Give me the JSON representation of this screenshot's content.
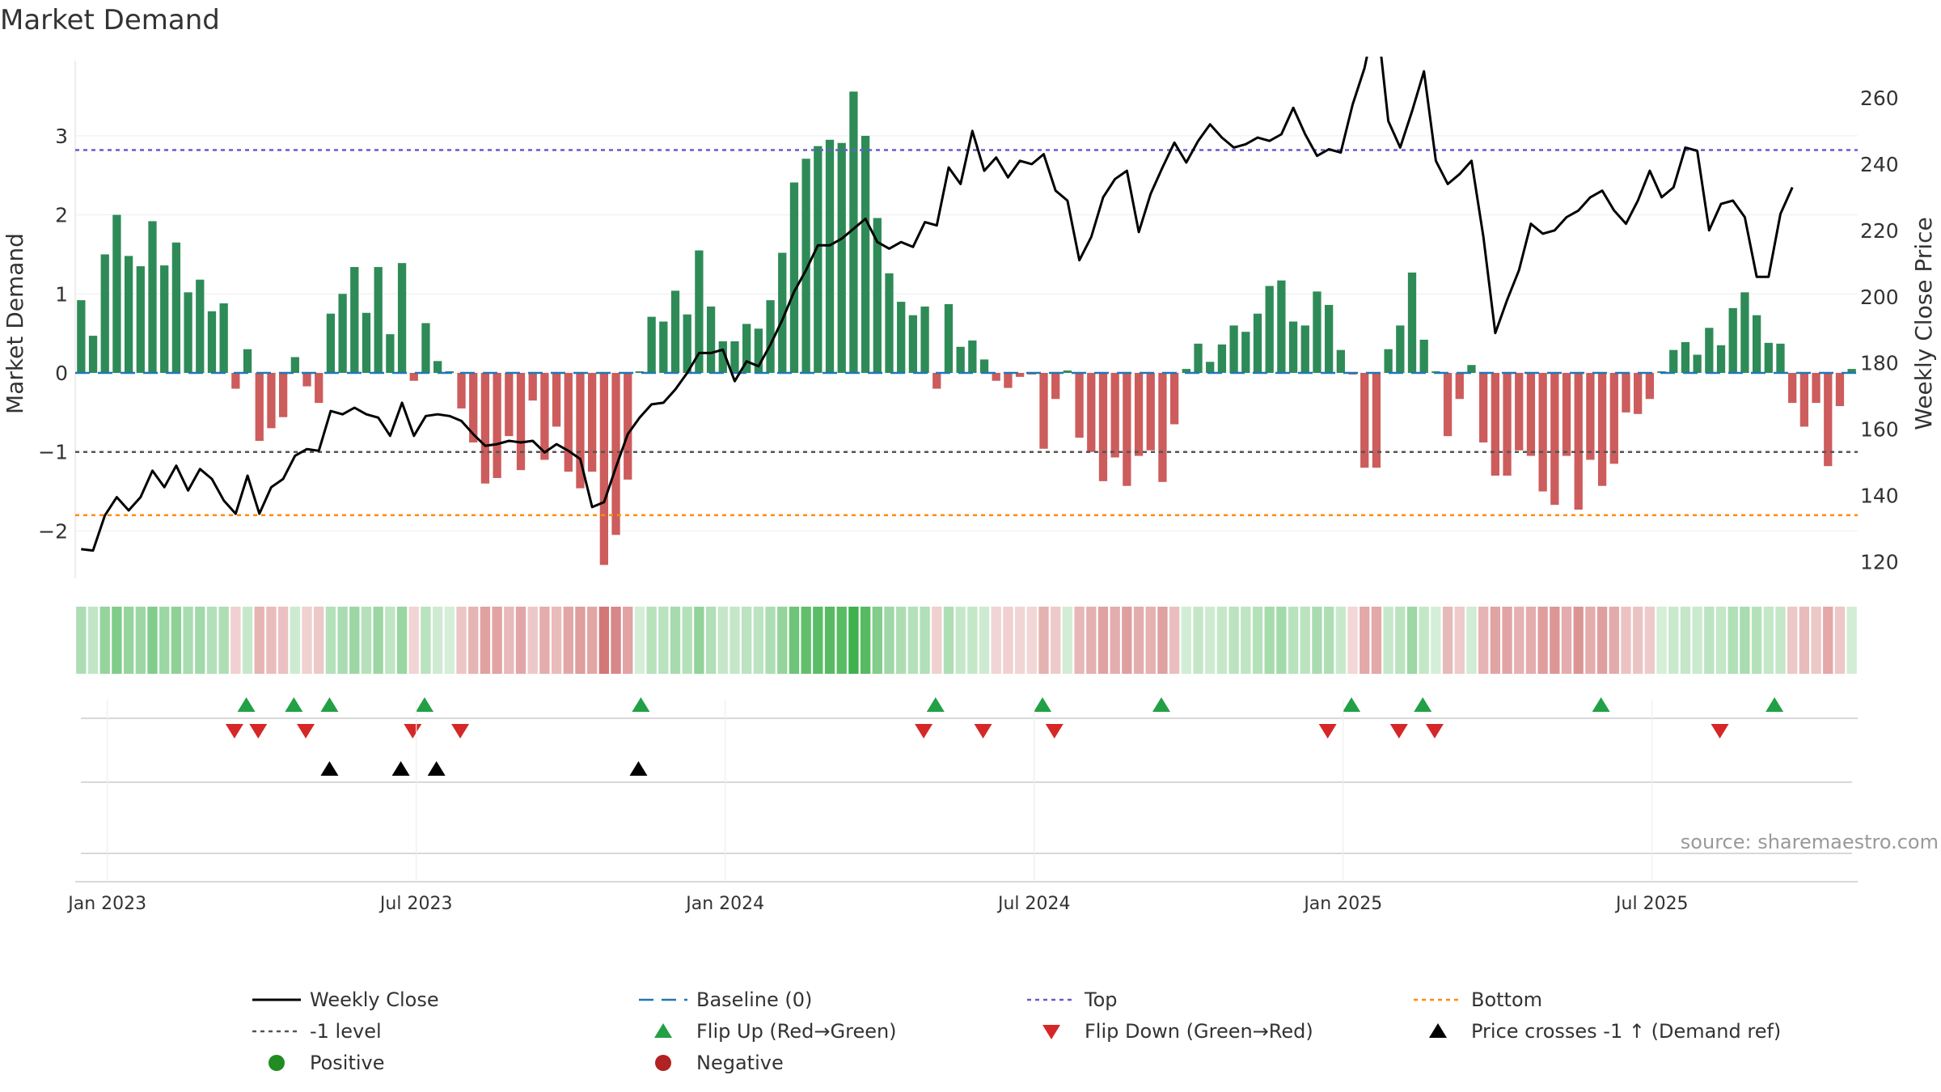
{
  "chart_data": {
    "type": "bar",
    "title": "Market Demand",
    "ylabel_left": "Market Demand",
    "ylabel_right": "Weekly Close Price",
    "ylim_left": [
      -2.6,
      3.9
    ],
    "ylim_right": [
      115,
      270
    ],
    "yticks_left": [
      3,
      2,
      1,
      0,
      -1,
      -2
    ],
    "yticks_left_labels": [
      "3",
      "2",
      "1",
      "0",
      "−1",
      "−2"
    ],
    "yticks_right": [
      260,
      240,
      220,
      200,
      180,
      160,
      140,
      120
    ],
    "x_tick_labels": [
      "Jan 2023",
      "Jul 2023",
      "Jan 2024",
      "Jul 2024",
      "Jan 2025",
      "Jul 2025"
    ],
    "x_tick_weeks": [
      2.2,
      28.2,
      54.2,
      80.2,
      106.2,
      132.2
    ],
    "reference_lines": {
      "top": 2.82,
      "minus_one": -1.0,
      "bottom": -1.8
    },
    "demand": [
      0.92,
      0.47,
      1.5,
      2.0,
      1.48,
      1.35,
      1.92,
      1.36,
      1.65,
      1.02,
      1.18,
      0.78,
      0.88,
      -0.2,
      0.3,
      -0.86,
      -0.7,
      -0.56,
      0.2,
      -0.17,
      -0.38,
      0.75,
      1.0,
      1.34,
      0.76,
      1.34,
      0.49,
      1.39,
      -0.1,
      0.63,
      0.15,
      0.02,
      -0.45,
      -0.88,
      -1.4,
      -1.33,
      -0.8,
      -1.23,
      -0.35,
      -1.1,
      -0.68,
      -1.25,
      -1.46,
      -1.25,
      -2.43,
      -2.05,
      -1.35,
      0.02,
      0.71,
      0.65,
      1.04,
      0.74,
      1.55,
      0.84,
      0.4,
      0.4,
      0.62,
      0.56,
      0.92,
      1.52,
      2.41,
      2.71,
      2.87,
      2.95,
      2.91,
      3.56,
      3.0,
      1.96,
      1.26,
      0.9,
      0.73,
      0.84,
      -0.2,
      0.87,
      0.33,
      0.41,
      0.17,
      -0.1,
      -0.19,
      -0.05,
      -0.02,
      -0.96,
      -0.33,
      0.03,
      -0.82,
      -1.0,
      -1.37,
      -1.07,
      -1.43,
      -1.05,
      -0.98,
      -1.38,
      -0.65,
      0.05,
      0.37,
      0.14,
      0.36,
      0.6,
      0.52,
      0.75,
      1.1,
      1.17,
      0.65,
      0.6,
      1.03,
      0.86,
      0.29,
      -0.02,
      -1.2,
      -1.2,
      0.3,
      0.6,
      1.27,
      0.42,
      0.02,
      -0.8,
      -0.33,
      0.1,
      -0.88,
      -1.3,
      -1.3,
      -0.98,
      -1.05,
      -1.5,
      -1.67,
      -1.05,
      -1.73,
      -1.1,
      -1.43,
      -1.15,
      -0.5,
      -0.52,
      -0.33,
      0.02,
      0.29,
      0.39,
      0.23,
      0.57,
      0.35,
      0.82,
      1.02,
      0.73,
      0.38,
      0.37,
      -0.38,
      -0.68,
      -0.38,
      -1.18,
      -0.42,
      0.05
    ],
    "weekly_close": [
      123.8,
      123.4,
      134,
      139.5,
      135.5,
      139.5,
      147.5,
      142.5,
      149,
      141.5,
      148,
      145,
      138.5,
      134.5,
      146,
      134.5,
      142.5,
      145,
      152,
      154,
      153.5,
      165.5,
      164.5,
      166.5,
      164.5,
      163.5,
      158,
      168,
      158,
      164,
      164.5,
      164,
      162.5,
      158.5,
      155,
      155.5,
      156.5,
      156,
      156.5,
      153,
      155.5,
      153.5,
      151,
      136.5,
      138,
      148.5,
      158.5,
      163.5,
      167.5,
      168,
      172,
      177,
      183,
      183,
      184,
      174.5,
      180.5,
      179,
      185.5,
      193,
      201.5,
      208,
      215.5,
      215.5,
      217.5,
      220.5,
      223.5,
      216.5,
      214.5,
      216.5,
      215,
      222.5,
      221.5,
      239,
      234,
      250,
      238,
      242,
      236,
      241,
      240,
      243,
      232,
      229,
      211,
      218,
      230,
      235.5,
      238,
      219.5,
      231,
      239,
      246.5,
      240.5,
      247,
      252,
      248,
      245,
      246,
      248,
      247,
      249,
      257,
      249,
      242.5,
      244.5,
      243.5,
      258,
      269,
      286,
      253,
      245,
      256,
      268,
      241,
      234,
      237,
      241,
      218,
      189,
      199,
      208,
      222,
      219,
      220,
      224,
      226,
      230,
      232,
      226,
      222,
      229,
      238,
      230,
      233,
      245,
      244,
      220,
      228,
      229,
      224,
      206,
      206,
      225,
      233
    ]
  },
  "flip_up_weeks": [
    13.9,
    17.9,
    20.9,
    28.9,
    47.1,
    71.9,
    80.9,
    90.9,
    106.9,
    112.9,
    127.9,
    142.5
  ],
  "flip_down_weeks": [
    12.9,
    14.9,
    18.9,
    27.9,
    31.9,
    70.9,
    75.9,
    81.9,
    104.9,
    110.9,
    113.9,
    137.9
  ],
  "price_cross_weeks": [
    20.9,
    26.9,
    29.9,
    46.9
  ],
  "legend": {
    "weekly_close": "Weekly Close",
    "baseline": "Baseline (0)",
    "top": "Top",
    "bottom": "Bottom",
    "minus_one": "-1 level",
    "flip_up": "Flip Up (Red→Green)",
    "flip_down": "Flip Down (Green→Red)",
    "price_cross": "Price crosses -1 ↑ (Demand ref)",
    "positive": "Positive",
    "negative": "Negative"
  },
  "source": "source: sharemaestro.com",
  "colors": {
    "positive_bar": "#2e8b57",
    "negative_bar": "#cd5c5c",
    "close_line": "#000000",
    "baseline": "#1f77b4",
    "top": "#6a5acd",
    "minus_one": "#555555",
    "bottom": "#ff8c00",
    "flip_up": "#22a045",
    "flip_down": "#d62728",
    "price_cross": "#000000",
    "positive_dot": "#228b22",
    "negative_dot": "#b22222",
    "strip_pos": "#3cb04a",
    "strip_neg": "#c44a4a"
  }
}
